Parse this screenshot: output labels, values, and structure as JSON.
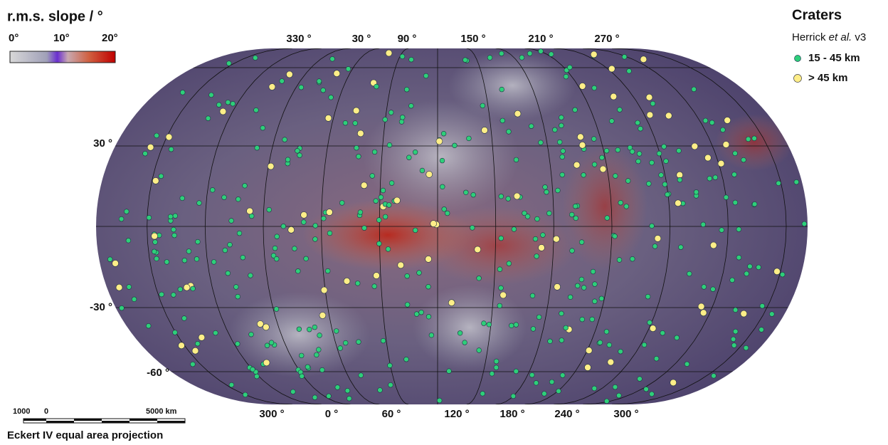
{
  "title": "r.m.s. slope / °",
  "colorbar": {
    "labels": [
      "0°",
      "10°",
      "20°"
    ]
  },
  "legend": {
    "title": "Craters",
    "source": [
      "Herrick",
      "et al.",
      "v3"
    ],
    "items": [
      "15 - 45 km",
      "> 45 km"
    ]
  },
  "longitude_labels_top": [
    "330 °",
    "30 °",
    "90 °",
    "150 °",
    "210 °",
    "270 °"
  ],
  "longitude_labels_bottom": [
    "300 °",
    "0 °",
    "60 °",
    "120 °",
    "180 °",
    "240 °",
    "300 °"
  ],
  "latitude_labels": [
    "30 °",
    "-30 °",
    "-60 °"
  ],
  "scale_bar": {
    "labels": [
      "1000",
      "0",
      "5000 km"
    ]
  },
  "projection": "Eckert IV equal area projection"
}
